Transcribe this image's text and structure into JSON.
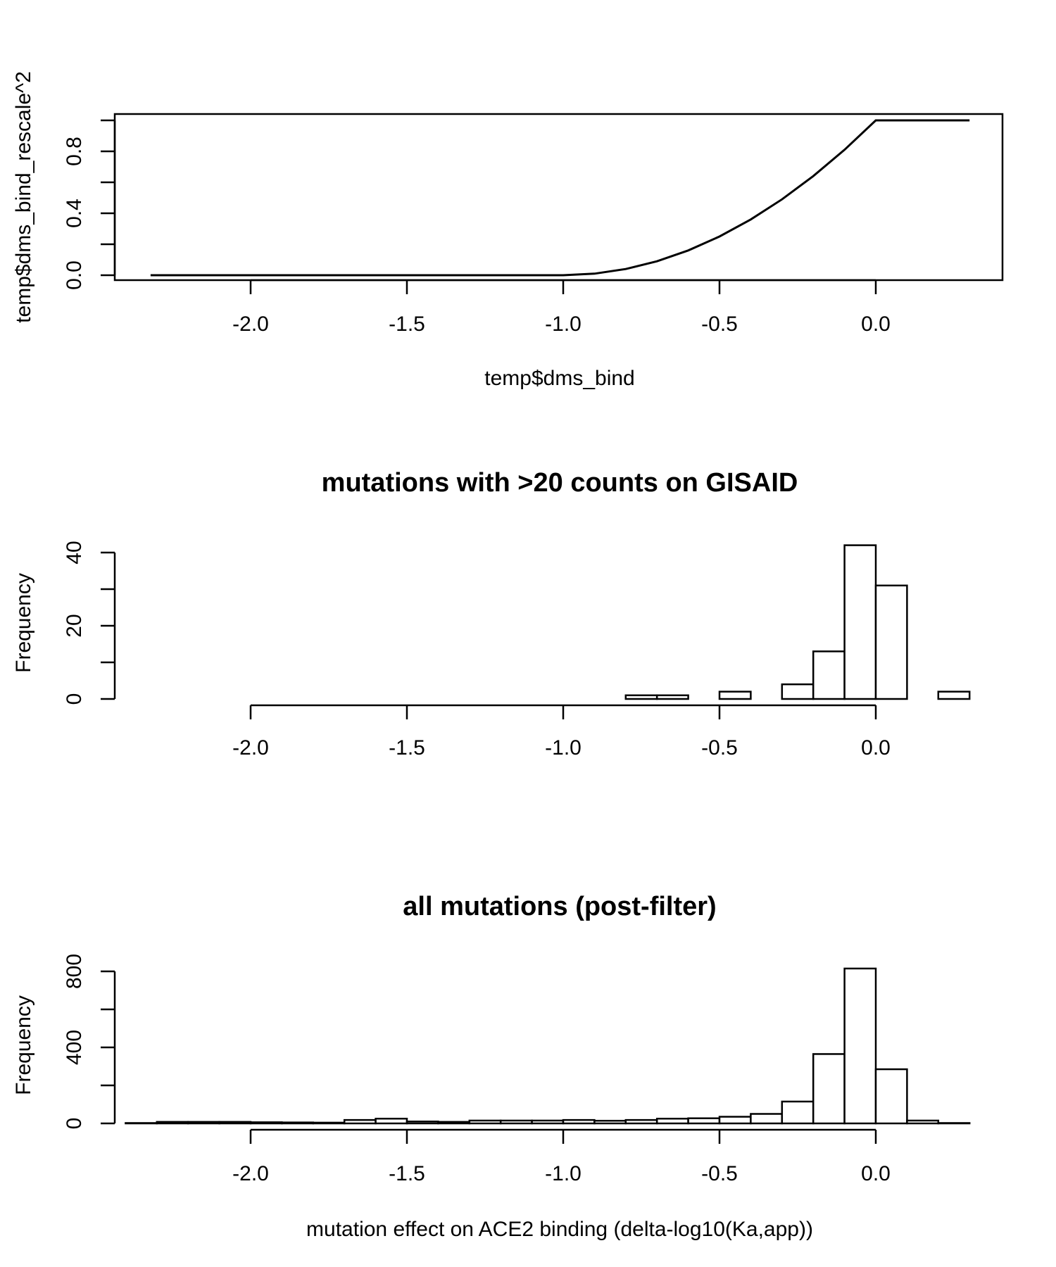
{
  "chart_data": [
    {
      "type": "line",
      "title": "",
      "xlabel": "temp$dms_bind",
      "ylabel": "temp$dms_bind_rescale^2",
      "xlim": [
        -2.32,
        0.3
      ],
      "ylim": [
        0,
        1
      ],
      "xticks": [
        -2.0,
        -1.5,
        -1.0,
        -0.5,
        0.0
      ],
      "xtick_labels": [
        "-2.0",
        "-1.5",
        "-1.0",
        "-0.5",
        "0.0"
      ],
      "yticks": [
        0.0,
        0.2,
        0.4,
        0.6,
        0.8,
        1.0
      ],
      "ytick_labels": [
        "0.0",
        "",
        "0.4",
        "",
        "0.8",
        ""
      ],
      "box": true,
      "series": [
        {
          "x": [
            -2.32,
            -1.0,
            -0.9,
            -0.8,
            -0.7,
            -0.6,
            -0.5,
            -0.4,
            -0.3,
            -0.2,
            -0.1,
            0.0,
            0.3
          ],
          "y": [
            0,
            0,
            0.01,
            0.04,
            0.09,
            0.16,
            0.25,
            0.36,
            0.49,
            0.64,
            0.81,
            1.0,
            1.0
          ]
        }
      ]
    },
    {
      "type": "bar",
      "title": "mutations with >20 counts on GISAID",
      "xlabel": "",
      "ylabel": "Frequency",
      "ylim": [
        0,
        42
      ],
      "xticks": [
        -2.0,
        -1.5,
        -1.0,
        -0.5,
        0.0
      ],
      "xtick_labels": [
        "-2.0",
        "-1.5",
        "-1.0",
        "-0.5",
        "0.0"
      ],
      "yticks": [
        0,
        10,
        20,
        30,
        40
      ],
      "ytick_labels": [
        "0",
        "",
        "20",
        "",
        "40"
      ],
      "bin_edges": [
        -0.8,
        -0.7,
        -0.6,
        -0.5,
        -0.4,
        -0.3,
        -0.2,
        -0.1,
        0.0,
        0.1,
        0.2,
        0.3
      ],
      "values": [
        1,
        1,
        0,
        2,
        0,
        4,
        13,
        42,
        31,
        0,
        2
      ]
    },
    {
      "type": "bar",
      "title": "all mutations (post-filter)",
      "xlabel": "mutation effect on ACE2 binding (delta-log10(Ka,app))",
      "ylabel": "Frequency",
      "ylim": [
        0,
        820
      ],
      "xticks": [
        -2.0,
        -1.5,
        -1.0,
        -0.5,
        0.0
      ],
      "xtick_labels": [
        "-2.0",
        "-1.5",
        "-1.0",
        "-0.5",
        "0.0"
      ],
      "yticks": [
        0,
        200,
        400,
        600,
        800
      ],
      "ytick_labels": [
        "0",
        "",
        "400",
        "",
        "800"
      ],
      "bin_edges": [
        -2.4,
        -2.3,
        -2.2,
        -2.1,
        -2.0,
        -1.9,
        -1.8,
        -1.7,
        -1.6,
        -1.5,
        -1.4,
        -1.3,
        -1.2,
        -1.1,
        -1.0,
        -0.9,
        -0.8,
        -0.7,
        -0.6,
        -0.5,
        -0.4,
        -0.3,
        -0.2,
        -0.1,
        0.0,
        0.1,
        0.2,
        0.3
      ],
      "values": [
        2,
        8,
        8,
        8,
        6,
        5,
        4,
        18,
        25,
        10,
        8,
        15,
        15,
        15,
        18,
        14,
        18,
        25,
        27,
        35,
        50,
        115,
        365,
        815,
        285,
        15,
        2
      ]
    }
  ]
}
